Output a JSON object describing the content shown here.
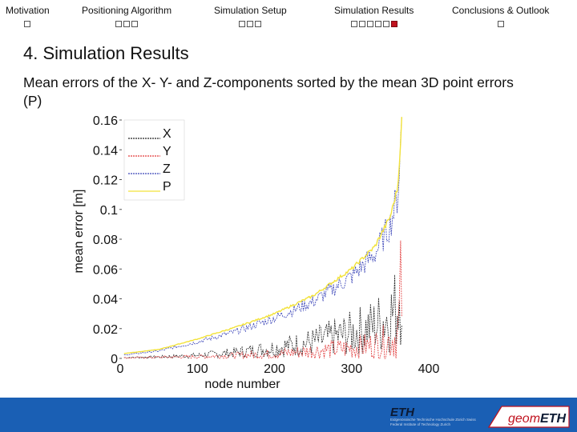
{
  "nav": {
    "items": [
      {
        "label": "Motivation",
        "dots": 1,
        "active": -1
      },
      {
        "label": "Positioning Algorithm",
        "dots": 3,
        "active": -1
      },
      {
        "label": "Simulation Setup",
        "dots": 3,
        "active": -1
      },
      {
        "label": "Simulation Results",
        "dots": 6,
        "active": 5
      },
      {
        "label": "Conclusions & Outlook",
        "dots": 1,
        "active": -1
      }
    ]
  },
  "slide": {
    "title": "4. Simulation Results",
    "subtitle": "Mean errors of the X- Y- and Z-components sorted by the mean 3D point errors (P)"
  },
  "chart_data": {
    "type": "line",
    "xlabel": "node number",
    "ylabel": "mean error [m]",
    "xlim": [
      0,
      400
    ],
    "ylim": [
      0,
      0.16
    ],
    "xticks": [
      "0",
      "100",
      "200",
      "300",
      "400"
    ],
    "yticks": [
      "0",
      "0.02",
      "0.04",
      "0.06",
      "0.08",
      "0.1",
      "0.12",
      "0.14",
      "0.16"
    ],
    "legend_position": "top-left",
    "series": [
      {
        "name": "X",
        "color": "#222222",
        "x": [
          0,
          50,
          100,
          150,
          200,
          250,
          300,
          330,
          350,
          360,
          365
        ],
        "y": [
          0.0005,
          0.001,
          0.002,
          0.004,
          0.007,
          0.011,
          0.017,
          0.022,
          0.029,
          0.035,
          0.068
        ]
      },
      {
        "name": "Y",
        "color": "#e23b3b",
        "x": [
          0,
          50,
          100,
          150,
          200,
          250,
          300,
          330,
          350,
          360,
          365
        ],
        "y": [
          0.0003,
          0.0008,
          0.0012,
          0.002,
          0.003,
          0.005,
          0.007,
          0.009,
          0.012,
          0.016,
          0.05
        ]
      },
      {
        "name": "Z",
        "color": "#3a44b8",
        "x": [
          0,
          50,
          100,
          150,
          200,
          250,
          300,
          330,
          350,
          360,
          365
        ],
        "y": [
          0.002,
          0.005,
          0.011,
          0.018,
          0.027,
          0.038,
          0.055,
          0.07,
          0.09,
          0.11,
          0.16
        ]
      },
      {
        "name": "P",
        "color": "#f2e23a",
        "x": [
          0,
          50,
          100,
          150,
          200,
          250,
          300,
          330,
          350,
          360,
          365
        ],
        "y": [
          0.003,
          0.006,
          0.013,
          0.021,
          0.03,
          0.042,
          0.06,
          0.075,
          0.095,
          0.115,
          0.16
        ]
      }
    ]
  },
  "footer": {
    "eth_logo": "ETH",
    "eth_text": "Eidgenössische Technische Hochschule Zürich Swiss Federal Institute of Technology Zurich",
    "geom_logo_prefix": "geom",
    "geom_logo_suffix": "ETH",
    "brand_color": "#1a5fb4",
    "accent_color": "#c0121e"
  }
}
